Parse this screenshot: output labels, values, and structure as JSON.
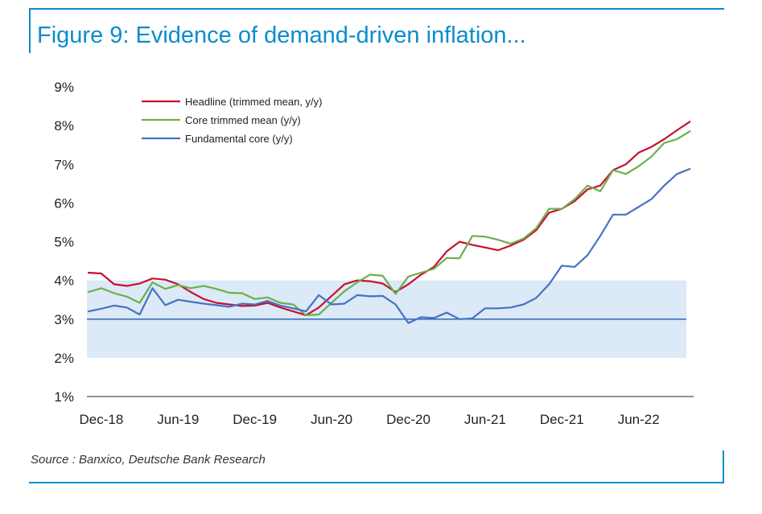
{
  "title": "Figure 9: Evidence of demand-driven inflation...",
  "source": "Source : Banxico, Deutsche Bank Research",
  "chart_data": {
    "type": "line",
    "title": "Figure 9: Evidence of demand-driven inflation...",
    "ylim": [
      1,
      9
    ],
    "y_ticks": [
      "1%",
      "2%",
      "3%",
      "4%",
      "5%",
      "6%",
      "7%",
      "8%",
      "9%"
    ],
    "y_tick_values": [
      1,
      2,
      3,
      4,
      5,
      6,
      7,
      8,
      9
    ],
    "x_ticks": [
      "Dec-18",
      "Jun-19",
      "Dec-19",
      "Jun-20",
      "Dec-20",
      "Jun-21",
      "Dec-21",
      "Jun-22"
    ],
    "x_tick_values": [
      "2018-12",
      "2019-06",
      "2019-12",
      "2020-06",
      "2020-12",
      "2021-06",
      "2021-12",
      "2022-06"
    ],
    "x": [
      "2018-11",
      "2018-12",
      "2019-01",
      "2019-02",
      "2019-03",
      "2019-04",
      "2019-05",
      "2019-06",
      "2019-07",
      "2019-08",
      "2019-09",
      "2019-10",
      "2019-11",
      "2019-12",
      "2020-01",
      "2020-02",
      "2020-03",
      "2020-04",
      "2020-05",
      "2020-06",
      "2020-07",
      "2020-08",
      "2020-09",
      "2020-10",
      "2020-11",
      "2020-12",
      "2021-01",
      "2021-02",
      "2021-03",
      "2021-04",
      "2021-05",
      "2021-06",
      "2021-07",
      "2021-08",
      "2021-09",
      "2021-10",
      "2021-11",
      "2021-12",
      "2022-01",
      "2022-02",
      "2022-03",
      "2022-04",
      "2022-05",
      "2022-06",
      "2022-07",
      "2022-08",
      "2022-09",
      "2022-10"
    ],
    "series": [
      {
        "name": "Headline (trimmed mean, y/y)",
        "color": "#c8102e",
        "values": [
          4.2,
          4.18,
          3.9,
          3.86,
          3.92,
          4.05,
          4.02,
          3.9,
          3.7,
          3.52,
          3.42,
          3.38,
          3.34,
          3.35,
          3.42,
          3.3,
          3.2,
          3.1,
          3.3,
          3.6,
          3.9,
          4.0,
          3.98,
          3.92,
          3.7,
          3.9,
          4.15,
          4.35,
          4.75,
          5.0,
          4.92,
          4.85,
          4.78,
          4.9,
          5.05,
          5.3,
          5.75,
          5.85,
          6.05,
          6.35,
          6.45,
          6.85,
          7.0,
          7.3,
          7.45,
          7.65,
          7.88,
          8.1
        ]
      },
      {
        "name": "Core trimmed mean (y/y)",
        "color": "#6ab04c",
        "values": [
          3.7,
          3.8,
          3.67,
          3.58,
          3.42,
          3.95,
          3.78,
          3.88,
          3.8,
          3.86,
          3.78,
          3.68,
          3.67,
          3.52,
          3.56,
          3.42,
          3.38,
          3.1,
          3.12,
          3.42,
          3.72,
          3.95,
          4.15,
          4.12,
          3.65,
          4.1,
          4.2,
          4.3,
          4.58,
          4.57,
          5.15,
          5.13,
          5.05,
          4.95,
          5.08,
          5.35,
          5.85,
          5.85,
          6.1,
          6.45,
          6.3,
          6.85,
          6.75,
          6.95,
          7.2,
          7.55,
          7.65,
          7.85
        ]
      },
      {
        "name": "Fundamental core (y/y)",
        "color": "#4472c4",
        "values": [
          3.2,
          3.27,
          3.35,
          3.3,
          3.12,
          3.8,
          3.36,
          3.5,
          3.45,
          3.4,
          3.36,
          3.32,
          3.4,
          3.38,
          3.47,
          3.35,
          3.28,
          3.2,
          3.62,
          3.38,
          3.4,
          3.62,
          3.59,
          3.6,
          3.38,
          2.9,
          3.05,
          3.03,
          3.17,
          3.0,
          3.02,
          3.28,
          3.28,
          3.3,
          3.38,
          3.55,
          3.9,
          4.38,
          4.35,
          4.65,
          5.15,
          5.7,
          5.7,
          5.9,
          6.1,
          6.45,
          6.75,
          6.88
        ]
      }
    ],
    "reference_line": 3,
    "target_band": [
      2,
      4
    ],
    "band_color": "#dce9f6",
    "grid": false,
    "legend_position": "top-left"
  }
}
